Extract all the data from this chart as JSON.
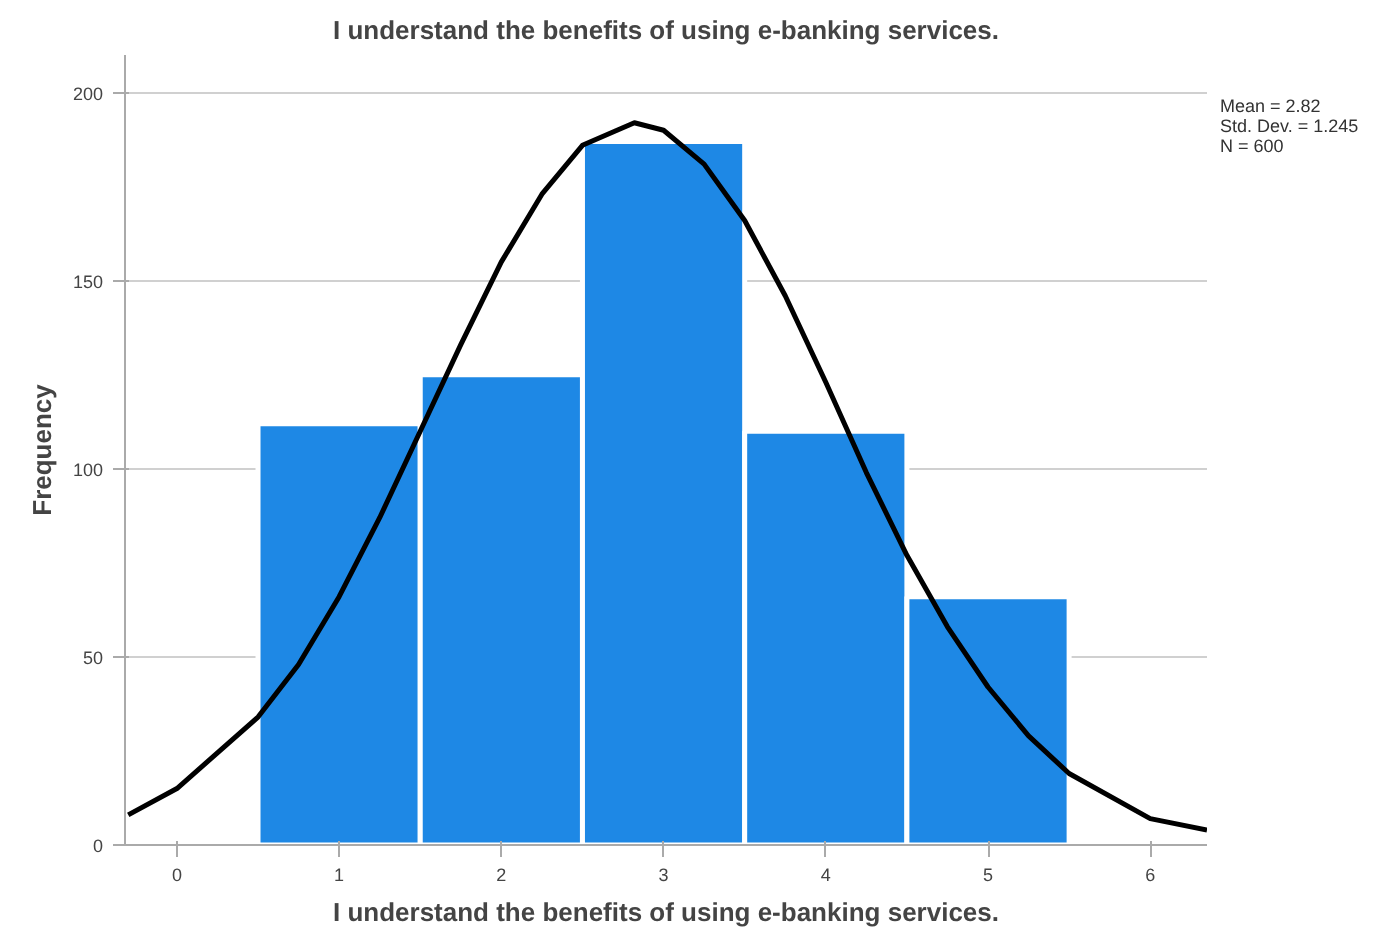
{
  "chart_data": {
    "type": "histogram",
    "title": "I understand the benefits of using e-banking services.",
    "xlabel": "I understand the benefits of using e-banking services.",
    "ylabel": "Frequency",
    "bins": [
      0.5,
      1.5,
      2.5,
      3.5,
      4.5,
      5.5
    ],
    "values": [
      112,
      125,
      187,
      110,
      66
    ],
    "color": "#1e88e5",
    "series": [
      {
        "type": "line",
        "color": "#000000",
        "x": [
          -0.3,
          0,
          0.5,
          0.75,
          1,
          1.25,
          1.5,
          1.75,
          2,
          2.25,
          2.5,
          2.82,
          3,
          3.25,
          3.5,
          3.75,
          4,
          4.25,
          4.5,
          4.75,
          5,
          5.25,
          5.5,
          6,
          6.35
        ],
        "values": [
          8,
          15,
          34,
          48,
          66,
          87,
          110,
          133,
          155,
          173,
          186,
          192,
          190,
          181,
          166,
          146,
          123,
          99,
          77,
          58,
          42,
          29,
          19,
          7,
          4
        ]
      }
    ],
    "xlim": [
      -0.32,
      6.35
    ],
    "ylim": [
      0,
      210
    ],
    "xticks": [
      0,
      1,
      2,
      3,
      4,
      5,
      6
    ],
    "yticks": [
      0,
      50,
      100,
      150,
      200
    ],
    "grid": "y",
    "annotations": [
      "Mean = 2.82",
      "Std. Dev. = 1.245",
      "N = 600"
    ]
  }
}
